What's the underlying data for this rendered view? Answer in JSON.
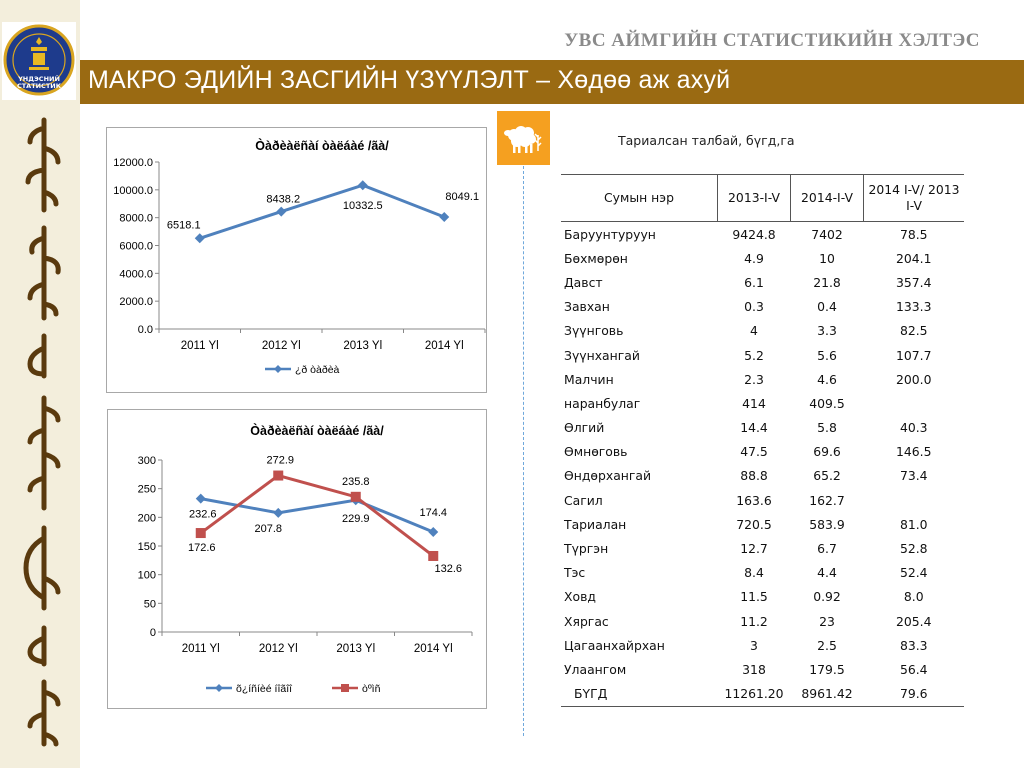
{
  "header": {
    "org_title": "УВС АЙМГИЙН СТАТИСТИКИЙН ХЭЛТЭС",
    "title": "МАКРО ЭДИЙН ЗАСГИЙН ҮЗҮҮЛЭЛТ – Хөдөө аж ахуй",
    "logo_line1": "ҮНДЭСНИЙ",
    "logo_line2": "СТАТИСТИК"
  },
  "colors": {
    "title_bar": "#9a6a12",
    "series_blue": "#4f81bd",
    "series_red": "#c0504d",
    "sheep_tile": "#f5a020"
  },
  "chart_data": [
    {
      "type": "line",
      "title": "Òàðèàëñàí òàëáàé /ãà/",
      "categories": [
        "2011 Yl",
        "2012 Yl",
        "2013 Yl",
        "2014 Yl"
      ],
      "series": [
        {
          "name": "¿ð òàðèà",
          "values": [
            6518.1,
            8438.2,
            10332.5,
            8049.1
          ],
          "labels": [
            "6518.1",
            "8438.2",
            "10332.5",
            "8049.1"
          ]
        }
      ],
      "yticks": [
        "0.0",
        "2000.0",
        "4000.0",
        "6000.0",
        "8000.0",
        "10000.0",
        "12000.0"
      ],
      "ylim": [
        0,
        12000
      ],
      "legend": "bottom",
      "grid": false
    },
    {
      "type": "line",
      "title": "Òàðèàëñàí òàëáàé /ãà/",
      "categories": [
        "2011 Yl",
        "2012 Yl",
        "2013 Yl",
        "2014 Yl"
      ],
      "series": [
        {
          "name": "õ¿íñíèé íîãîî",
          "values": [
            232.6,
            207.8,
            229.9,
            174.4
          ],
          "labels": [
            "232.6",
            "207.8",
            "229.9",
            "174.4"
          ]
        },
        {
          "name": "òºìñ",
          "values": [
            172.6,
            272.9,
            235.8,
            132.6
          ],
          "labels": [
            "172.6",
            "272.9",
            "235.8",
            "132.6"
          ]
        }
      ],
      "yticks": [
        "0",
        "50",
        "100",
        "150",
        "200",
        "250",
        "300"
      ],
      "ylim": [
        0,
        300
      ],
      "legend": "bottom",
      "grid": false
    }
  ],
  "table": {
    "caption": "Тариалсан талбай, бүгд,га",
    "headers": [
      "Сумын нэр",
      "2013-I-V",
      "2014-I-V",
      "2014 I-V/ 2013 I-V"
    ],
    "rows": [
      [
        "Баруунтуруун",
        "9424.8",
        "7402",
        "78.5"
      ],
      [
        "Бөхмөрөн",
        "4.9",
        "10",
        "204.1"
      ],
      [
        "Давст",
        "6.1",
        "21.8",
        "357.4"
      ],
      [
        "Завхан",
        "0.3",
        "0.4",
        "133.3"
      ],
      [
        "Зүүнговь",
        "4",
        "3.3",
        "82.5"
      ],
      [
        "Зүүнхангай",
        "5.2",
        "5.6",
        "107.7"
      ],
      [
        "Малчин",
        "2.3",
        "4.6",
        "200.0"
      ],
      [
        "наранбулаг",
        "414",
        "409.5",
        ""
      ],
      [
        "Өлгий",
        "14.4",
        "5.8",
        "40.3"
      ],
      [
        "Өмнөговь",
        "47.5",
        "69.6",
        "146.5"
      ],
      [
        "Өндөрхангай",
        "88.8",
        "65.2",
        "73.4"
      ],
      [
        "Сагил",
        "163.6",
        "162.7",
        ""
      ],
      [
        "Тариалан",
        "720.5",
        "583.9",
        "81.0"
      ],
      [
        "Түргэн",
        "12.7",
        "6.7",
        "52.8"
      ],
      [
        "Тэс",
        "8.4",
        "4.4",
        "52.4"
      ],
      [
        "Ховд",
        "11.5",
        "0.92",
        "8.0"
      ],
      [
        "Хяргас",
        "11.2",
        "23",
        "205.4"
      ],
      [
        "Цагаанхайрхан",
        "3",
        "2.5",
        "83.3"
      ],
      [
        "Улаангом",
        "318",
        "179.5",
        "56.4"
      ]
    ],
    "total": [
      "БҮГД",
      "11261.20",
      "8961.42",
      "79.6"
    ]
  }
}
